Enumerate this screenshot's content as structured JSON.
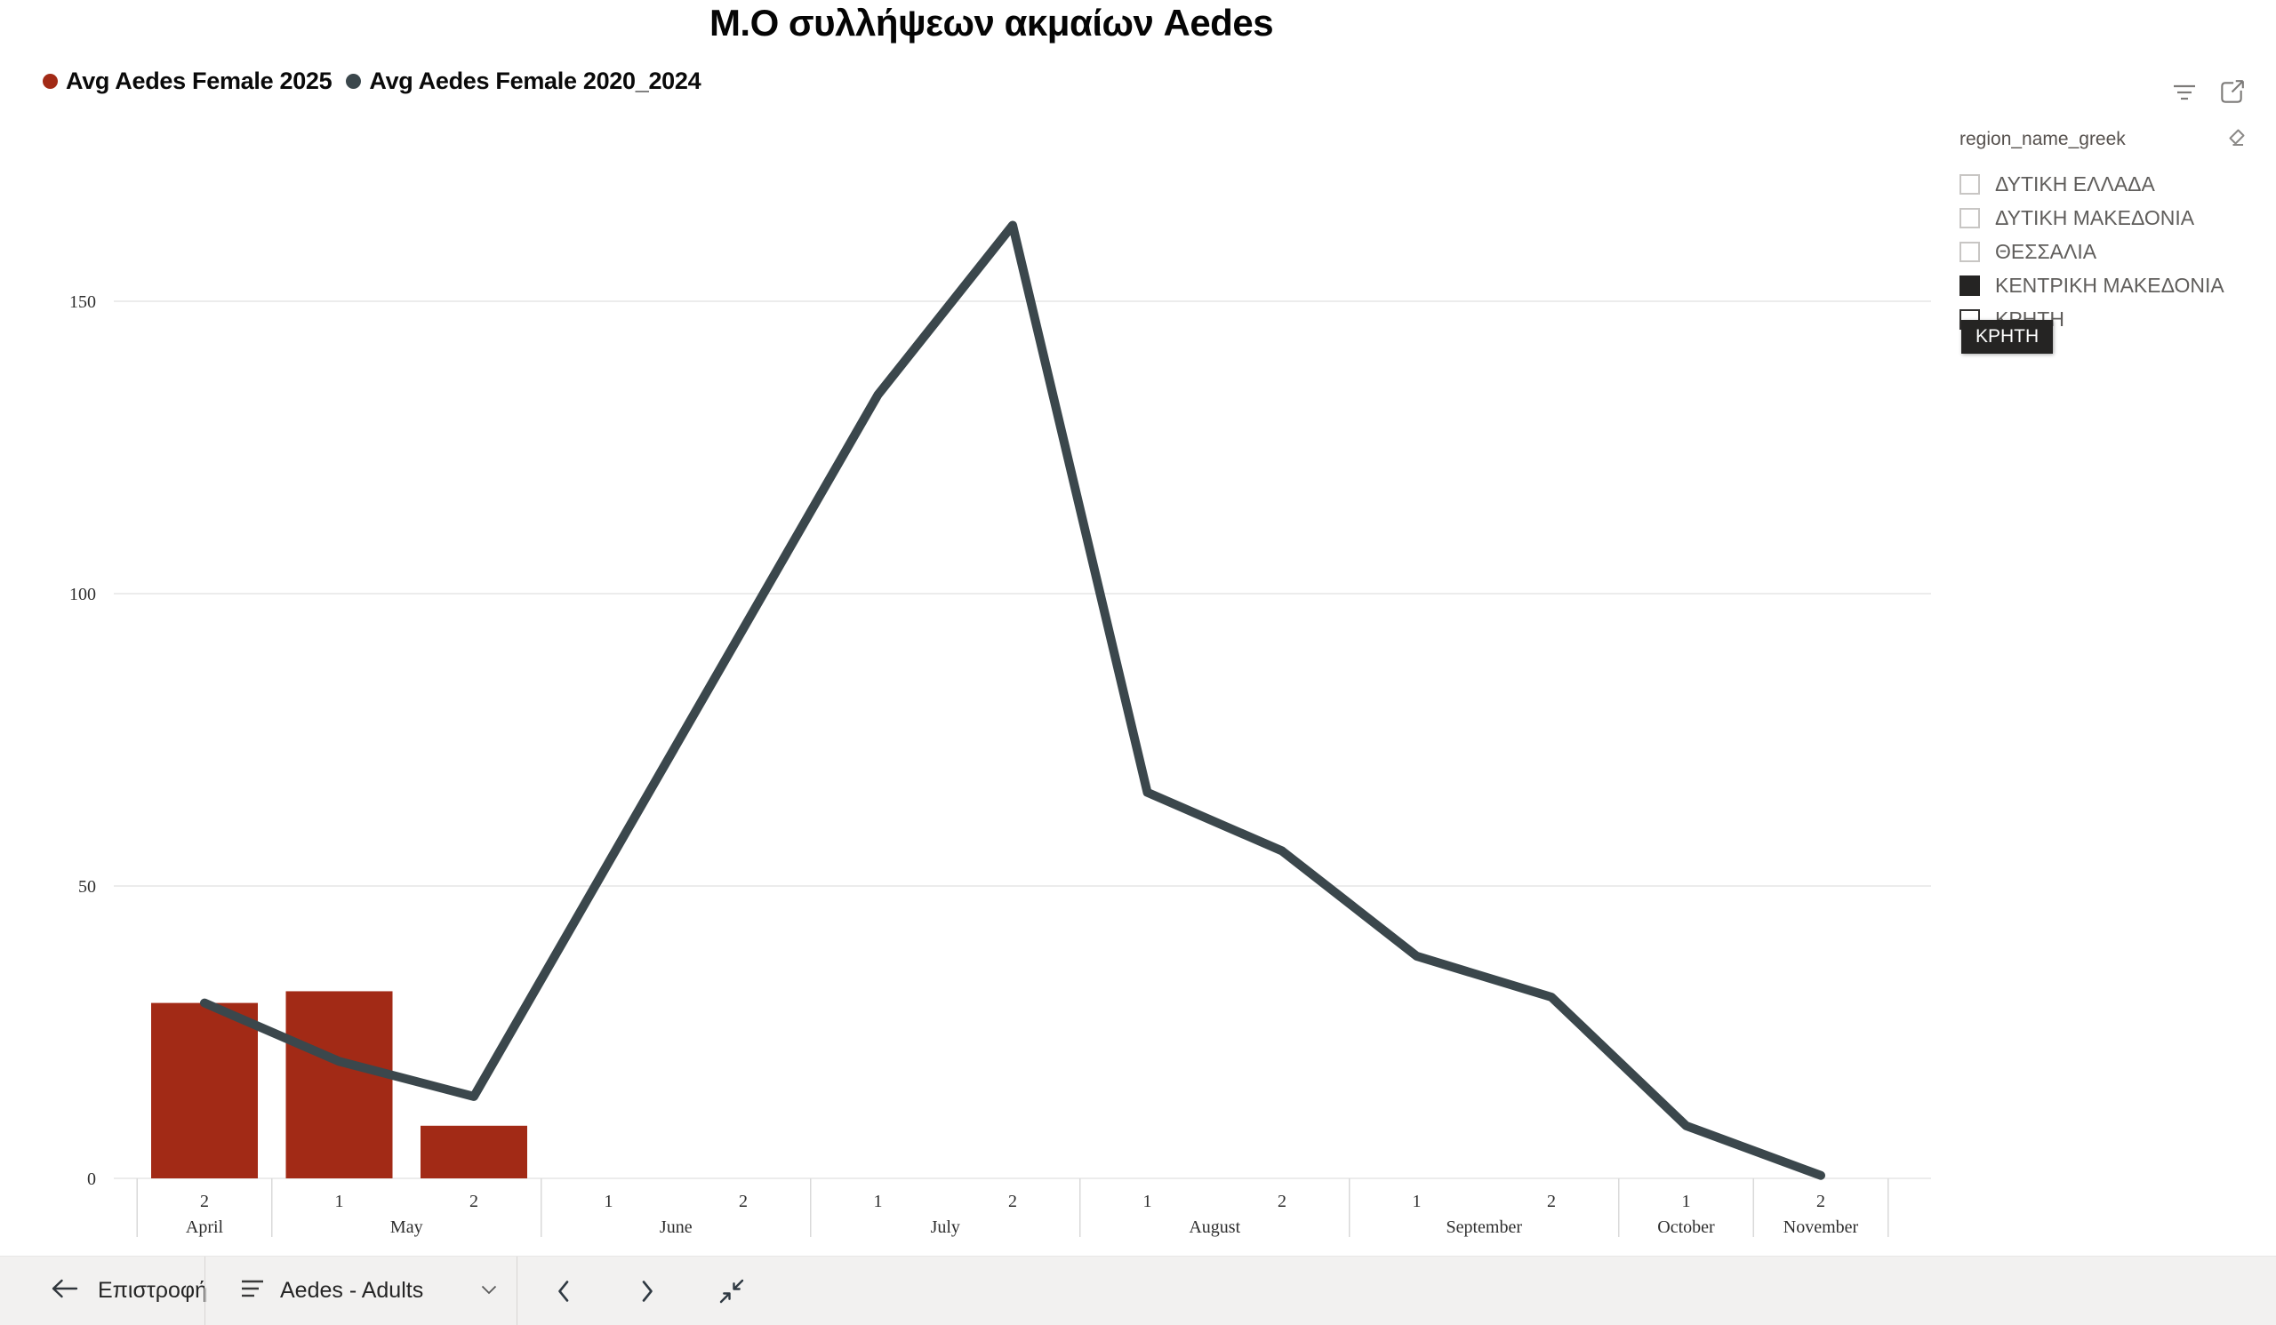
{
  "chart_data": {
    "type": "combo",
    "title": "Μ.Ο συλλήψεων ακμαίων Aedes",
    "x_categories": [
      [
        "April",
        "2"
      ],
      [
        "May",
        "1"
      ],
      [
        "May",
        "2"
      ],
      [
        "June",
        "1"
      ],
      [
        "June",
        "2"
      ],
      [
        "July",
        "1"
      ],
      [
        "July",
        "2"
      ],
      [
        "August",
        "1"
      ],
      [
        "August",
        "2"
      ],
      [
        "September",
        "1"
      ],
      [
        "September",
        "2"
      ],
      [
        "October",
        "1"
      ],
      [
        "November",
        "2"
      ]
    ],
    "y_ticks": [
      0,
      50,
      100,
      150
    ],
    "ylim": [
      0,
      170
    ],
    "grid": true,
    "legend_position": "top-left",
    "series": [
      {
        "name": "Avg Aedes Female 2025",
        "type": "bar",
        "color": "#A22A16",
        "values": [
          30,
          32,
          9,
          null,
          null,
          null,
          null,
          null,
          null,
          null,
          null,
          null,
          null
        ]
      },
      {
        "name": "Avg Aedes Female 2020_2024",
        "type": "line",
        "color": "#3B474C",
        "values": [
          30,
          20,
          14,
          54,
          94,
          134,
          163,
          66,
          56,
          38,
          31,
          9,
          0.5
        ]
      }
    ]
  },
  "visual_header": {
    "icons": [
      "filter-icon",
      "focus-mode-icon"
    ]
  },
  "filter_panel": {
    "field_label": "region_name_greek",
    "clear_icon": "eraser-icon",
    "items": [
      {
        "label": "ΔΥΤΙΚΗ ΕΛΛΑΔΑ",
        "checked": false,
        "hovered": false
      },
      {
        "label": "ΔΥΤΙΚΗ ΜΑΚΕΔΟΝΙΑ",
        "checked": false,
        "hovered": false
      },
      {
        "label": "ΘΕΣΣΑΛΙΑ",
        "checked": false,
        "hovered": false
      },
      {
        "label": "ΚΕΝΤΡΙΚΗ ΜΑΚΕΔΟΝΙΑ",
        "checked": true,
        "hovered": false
      },
      {
        "label": "ΚΡΗΤΗ",
        "checked": false,
        "hovered": true
      }
    ],
    "tooltip": "ΚΡΗΤΗ"
  },
  "toolbar": {
    "back_label": "Επιστροφή",
    "page_selector_label": "Aedes - Adults",
    "icons": [
      "back-arrow-icon",
      "page-list-icon",
      "chevron-down-icon",
      "chevron-left-icon",
      "chevron-right-icon",
      "collapse-icon"
    ]
  },
  "colors": {
    "bar": "#A22A16",
    "line": "#3B474C",
    "gridline": "#e6e6e6",
    "axis_text": "#2e2e2e",
    "tooltip_bg": "#252423",
    "toolbar_bg": "#f2f1f0"
  }
}
